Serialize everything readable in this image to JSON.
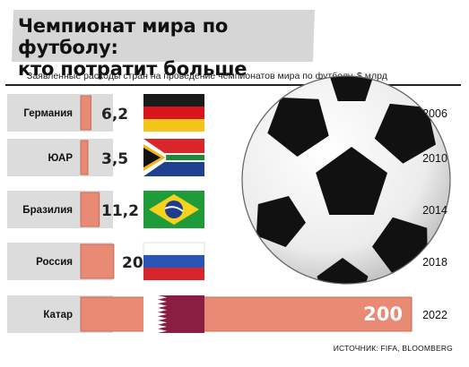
{
  "title_line1": "Чемпионат мира по футболу:",
  "title_line2": "кто потратит больше",
  "subtitle": "Заявленные расходы стран на проведение чемпионатов мира по футболу, $ млрд",
  "source": "ИСТОЧНИК: FIFA, BLOOMBERG",
  "colors": {
    "bar_fill": "#e98b74",
    "bar_stroke": "#c76a55",
    "stripe_bg": "#dcdcdc",
    "text": "#111111"
  },
  "chart_data": {
    "type": "bar",
    "orientation": "horizontal",
    "title": "Чемпионат мира по футболу: кто потратит больше",
    "subtitle": "Заявленные расходы стран на проведение чемпионатов мира по футболу, $ млрд",
    "categories": [
      "Германия",
      "ЮАР",
      "Бразилия",
      "Россия",
      "Катар"
    ],
    "years": [
      "2006",
      "2010",
      "2014",
      "2018",
      "2022"
    ],
    "value_labels": [
      "6,2",
      "3,5",
      "11,2",
      "20",
      "200"
    ],
    "values": [
      6.2,
      3.5,
      11.2,
      20,
      200
    ],
    "flags": [
      "germany-flag-icon",
      "south-africa-flag-icon",
      "brazil-flag-icon",
      "russia-flag-icon",
      "qatar-flag-icon"
    ],
    "decoration": "soccer-ball-icon",
    "grid": false,
    "legend": "none"
  }
}
